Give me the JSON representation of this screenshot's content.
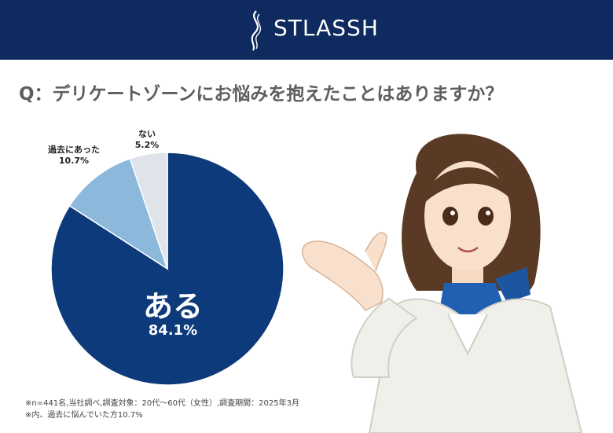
{
  "header": {
    "logo_text": "STLASSH"
  },
  "question": "Q：デリケートゾーンにお悩みを抱えたことはありますか？",
  "chart_data": {
    "type": "pie",
    "title": "",
    "slices": [
      {
        "label": "ある",
        "value": 84.1,
        "display": "84.1%",
        "color": "#0d3a7a"
      },
      {
        "label": "過去にあった",
        "value": 10.7,
        "display": "10.7%",
        "color": "#8cb8dc"
      },
      {
        "label": "ない",
        "value": 5.2,
        "display": "5.2%",
        "color": "#dfe3ea"
      }
    ]
  },
  "footnotes": [
    "※n=441名,当社調べ,調査対象：20代〜60代（女性）,調査期間：2025年3月",
    "※内、過去に悩んでいた方10.7%"
  ]
}
